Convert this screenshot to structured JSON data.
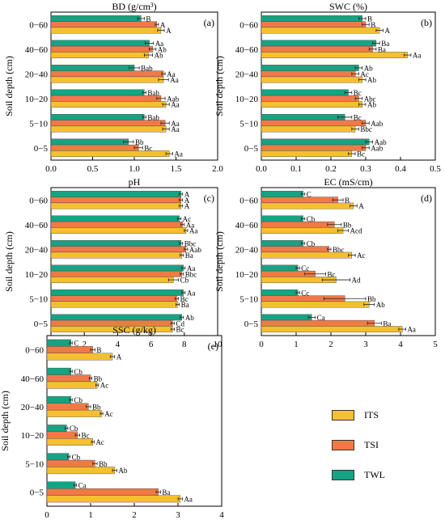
{
  "figure": {
    "colors": {
      "ITS": "#f5c02f",
      "TSI": "#f07a45",
      "TWL": "#16a383"
    },
    "legend": [
      {
        "key": "ITS",
        "label": "ITS"
      },
      {
        "key": "TSI",
        "label": "TSI"
      },
      {
        "key": "TWL",
        "label": "TWL"
      }
    ]
  },
  "chart_data": [
    {
      "id": "a",
      "panel_label": "(a)",
      "type": "bar",
      "orientation": "horizontal",
      "title": "BD (g/cm³)",
      "ylabel": "Soil depth (cm)",
      "xlabel": "",
      "xlim": [
        0,
        2.0
      ],
      "xticks": [
        "0.0",
        "0.5",
        "1.0",
        "1.5",
        "2.0"
      ],
      "categories": [
        "0−60",
        "40−60",
        "20−40",
        "10−20",
        "5−10",
        "0−5"
      ],
      "series": [
        {
          "key": "TWL",
          "values": [
            1.08,
            1.18,
            1.0,
            1.12,
            1.12,
            0.93
          ],
          "errors": [
            0.04,
            0.05,
            0.06,
            0.02,
            0.02,
            0.06
          ],
          "labels": [
            "B",
            "Aa",
            "Bab",
            "Bab",
            "Bab",
            "Bb"
          ]
        },
        {
          "key": "TSI",
          "values": [
            1.27,
            1.22,
            1.35,
            1.32,
            1.37,
            1.05
          ],
          "errors": [
            0.02,
            0.04,
            0.02,
            0.05,
            0.05,
            0.05
          ],
          "labels": [
            "A",
            "Ab",
            "Aa",
            "Aab",
            "Aa",
            "Bc"
          ]
        },
        {
          "key": "ITS",
          "values": [
            1.32,
            1.17,
            1.35,
            1.38,
            1.38,
            1.42
          ],
          "errors": [
            0.04,
            0.05,
            0.06,
            0.04,
            0.04,
            0.04
          ],
          "labels": [
            "A",
            "Ab",
            "Aa",
            "Aa",
            "Aa",
            "Aa"
          ]
        }
      ]
    },
    {
      "id": "b",
      "panel_label": "(b)",
      "type": "bar",
      "orientation": "horizontal",
      "title": "SWC  (%)",
      "ylabel": "Soil depth (cm)",
      "xlabel": "",
      "xlim": [
        0,
        0.5
      ],
      "xticks": [
        "0.0",
        "0.1",
        "0.2",
        "0.3",
        "0.4",
        "0.5"
      ],
      "categories": [
        "0−60",
        "40−60",
        "20−40",
        "10−20",
        "5−10",
        "0−5"
      ],
      "series": [
        {
          "key": "TWL",
          "values": [
            0.29,
            0.33,
            0.28,
            0.25,
            0.24,
            0.31
          ],
          "errors": [
            0.01,
            0.01,
            0.01,
            0.01,
            0.02,
            0.01
          ],
          "labels": [
            "B",
            "Ba",
            "Ab",
            "Bc",
            "Bc",
            "Aab"
          ]
        },
        {
          "key": "TSI",
          "values": [
            0.3,
            0.32,
            0.27,
            0.28,
            0.3,
            0.3
          ],
          "errors": [
            0.01,
            0.01,
            0.01,
            0.01,
            0.01,
            0.01
          ],
          "labels": [
            "B",
            "Ba",
            "Ac",
            "Abc",
            "Aab",
            "Aab"
          ]
        },
        {
          "key": "ITS",
          "values": [
            0.34,
            0.42,
            0.29,
            0.29,
            0.27,
            0.26
          ],
          "errors": [
            0.01,
            0.01,
            0.01,
            0.01,
            0.01,
            0.01
          ],
          "labels": [
            "A",
            "Aa",
            "Ab",
            "Ab",
            "Bbc",
            "Bc"
          ]
        }
      ]
    },
    {
      "id": "c",
      "panel_label": "(c)",
      "type": "bar",
      "orientation": "horizontal",
      "title": "pH",
      "ylabel": "Soil depth (cm)",
      "xlabel": "",
      "xlim": [
        0,
        10
      ],
      "xticks": [
        "0",
        "2",
        "4",
        "6",
        "8",
        "10"
      ],
      "categories": [
        "0−60",
        "40−60",
        "20−40",
        "10−20",
        "5−10",
        "0−5"
      ],
      "series": [
        {
          "key": "TWL",
          "values": [
            7.8,
            7.7,
            7.8,
            7.95,
            7.95,
            7.85
          ],
          "errors": [
            0.1,
            0.1,
            0.1,
            0.1,
            0.1,
            0.1
          ],
          "labels": [
            "A",
            "Ac",
            "Bbc",
            "Aa",
            "Aa",
            "Ab"
          ]
        },
        {
          "key": "TSI",
          "values": [
            7.8,
            7.9,
            8.1,
            7.85,
            7.55,
            7.3
          ],
          "errors": [
            0.1,
            0.1,
            0.1,
            0.1,
            0.1,
            0.1
          ],
          "labels": [
            "A",
            "Aa",
            "Aab",
            "Bbc",
            "Bc",
            "Cd"
          ]
        },
        {
          "key": "ITS",
          "values": [
            7.8,
            8.1,
            7.85,
            7.35,
            7.6,
            7.3
          ],
          "errors": [
            0.1,
            0.1,
            0.1,
            0.3,
            0.1,
            0.1
          ],
          "labels": [
            "A",
            "Aa",
            "Ba",
            "Cb",
            "Ba",
            "Bc"
          ]
        }
      ]
    },
    {
      "id": "d",
      "panel_label": "(d)",
      "type": "bar",
      "orientation": "horizontal",
      "title": "EC (mS/cm)",
      "ylabel": "Soil depth (cm)",
      "xlabel": "",
      "xlim": [
        0,
        5
      ],
      "xticks": [
        "0",
        "1",
        "2",
        "3",
        "4",
        "5"
      ],
      "categories": [
        "0−60",
        "40−60",
        "20−40",
        "10−20",
        "5−10",
        "0−5"
      ],
      "series": [
        {
          "key": "TWL",
          "values": [
            1.2,
            1.2,
            1.2,
            1.05,
            1.05,
            1.45
          ],
          "errors": [
            0.05,
            0.05,
            0.05,
            0.05,
            0.05,
            0.1
          ],
          "labels": [
            "C",
            "Cb",
            "Cb",
            "Cc",
            "Cc",
            "Ca"
          ]
        },
        {
          "key": "TSI",
          "values": [
            2.2,
            2.1,
            1.95,
            1.55,
            2.4,
            3.25
          ],
          "errors": [
            0.15,
            0.2,
            0.05,
            0.3,
            0.6,
            0.2
          ],
          "labels": [
            "B",
            "Bb",
            "Bbc",
            "Bc",
            "Bb",
            "Ba"
          ]
        },
        {
          "key": "ITS",
          "values": [
            2.65,
            2.35,
            2.6,
            2.15,
            3.1,
            4.05
          ],
          "errors": [
            0.1,
            0.15,
            0.1,
            0.4,
            0.15,
            0.1
          ],
          "labels": [
            "A",
            "Acd",
            "Ac",
            "Ad",
            "Ab",
            "Aa"
          ]
        }
      ]
    },
    {
      "id": "e",
      "panel_label": "(e)",
      "type": "bar",
      "orientation": "horizontal",
      "title": "SSC (g/kg)",
      "ylabel": "Soil depth (cm)",
      "xlabel": "",
      "xlim": [
        0,
        4
      ],
      "xticks": [
        "0",
        "1",
        "2",
        "3",
        "4"
      ],
      "categories": [
        "0−60",
        "40−60",
        "20−40",
        "10−20",
        "5−10",
        "0−5"
      ],
      "series": [
        {
          "key": "TWL",
          "values": [
            0.55,
            0.55,
            0.55,
            0.45,
            0.5,
            0.65
          ],
          "errors": [
            0.03,
            0.03,
            0.03,
            0.03,
            0.03,
            0.03
          ],
          "labels": [
            "C",
            "Cb",
            "Cb",
            "Cb",
            "Cb",
            "Ca"
          ]
        },
        {
          "key": "TSI",
          "values": [
            1.05,
            1.0,
            0.95,
            0.7,
            1.1,
            2.55
          ],
          "errors": [
            0.05,
            0.03,
            0.05,
            0.05,
            0.05,
            0.05
          ],
          "labels": [
            "B",
            "Bb",
            "Bb",
            "Bc",
            "Bb",
            "Ba"
          ]
        },
        {
          "key": "ITS",
          "values": [
            1.5,
            1.15,
            1.25,
            1.05,
            1.55,
            3.05
          ],
          "errors": [
            0.05,
            0.03,
            0.03,
            0.03,
            0.05,
            0.05
          ],
          "labels": [
            "A",
            "Ac",
            "Ac",
            "Ac",
            "Ab",
            "Aa"
          ]
        }
      ]
    }
  ]
}
